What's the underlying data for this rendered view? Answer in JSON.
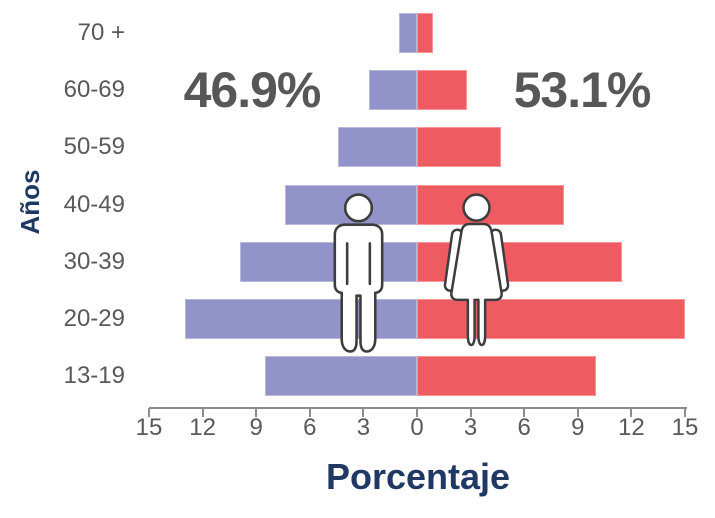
{
  "chart_data": {
    "type": "bar",
    "subtype": "population_pyramid",
    "orientation": "horizontal",
    "title": "",
    "xlabel": "Porcentaje",
    "ylabel": "Años",
    "categories": [
      "70 +",
      "60-69",
      "50-59",
      "40-49",
      "30-39",
      "20-29",
      "13-19"
    ],
    "series": [
      {
        "name": "male",
        "side": "left",
        "color": "#9193c9",
        "total_label": "46.9%",
        "values": [
          1.0,
          2.7,
          4.4,
          7.4,
          9.9,
          13.0,
          8.5
        ]
      },
      {
        "name": "female",
        "side": "right",
        "color": "#ee5c62",
        "total_label": "53.1%",
        "values": [
          0.9,
          2.8,
          4.7,
          8.2,
          11.5,
          15.0,
          10.0
        ]
      }
    ],
    "x_tick_labels": [
      "15",
      "12",
      "9",
      "6",
      "3",
      "0",
      "3",
      "6",
      "9",
      "12",
      "15"
    ],
    "x_max": 15,
    "grid": false,
    "legend": "pictograms",
    "background": "#ffffff"
  },
  "icons": {
    "male": "male-person-pictogram",
    "female": "female-person-pictogram"
  },
  "colors": {
    "male_bar": "#9193c9",
    "female_bar": "#ee5c62",
    "axis_text": "#595959",
    "axis_line": "#8c8c8c",
    "title_text": "#1f3864",
    "percent_text": "#575757",
    "icon_outline": "#3d3d3d",
    "icon_fill": "#ffffff"
  }
}
